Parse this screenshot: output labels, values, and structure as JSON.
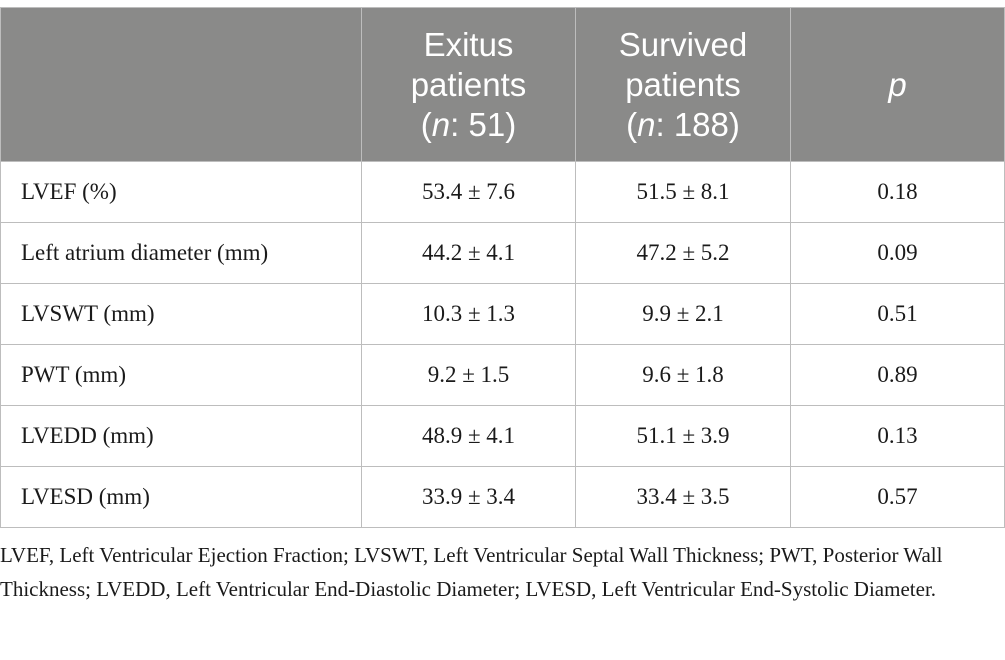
{
  "table": {
    "header": {
      "col1": {
        "line1": "Exitus",
        "line2": "patients",
        "n_prefix": "(",
        "n_italic": "n",
        "n_suffix": ": 51)"
      },
      "col2": {
        "line1": "Survived",
        "line2": "patients",
        "n_prefix": "(",
        "n_italic": "n",
        "n_suffix": ": 188)"
      },
      "col3": {
        "label": "p"
      }
    },
    "rows": [
      {
        "label": "LVEF (%)",
        "exitus": "53.4 ± 7.6",
        "survived": "51.5 ± 8.1",
        "p": "0.18"
      },
      {
        "label": "Left atrium diameter (mm)",
        "exitus": "44.2 ± 4.1",
        "survived": "47.2 ± 5.2",
        "p": "0.09"
      },
      {
        "label": "LVSWT (mm)",
        "exitus": "10.3 ± 1.3",
        "survived": "9.9 ± 2.1",
        "p": "0.51"
      },
      {
        "label": "PWT (mm)",
        "exitus": "9.2 ± 1.5",
        "survived": "9.6 ± 1.8",
        "p": "0.89"
      },
      {
        "label": "LVEDD (mm)",
        "exitus": "48.9 ± 4.1",
        "survived": "51.1 ± 3.9",
        "p": "0.13"
      },
      {
        "label": "LVESD (mm)",
        "exitus": "33.9 ± 3.4",
        "survived": "33.4 ± 3.5",
        "p": "0.57"
      }
    ]
  },
  "footnote": "LVEF, Left Ventricular Ejection Fraction; LVSWT, Left Ventricular Septal Wall Thickness; PWT, Posterior Wall Thickness; LVEDD, Left Ventricular End-Diastolic Diameter; LVESD, Left Ventricular End-Systolic Diameter.",
  "colors": {
    "header_background": "#8a8a89",
    "header_text": "#ffffff",
    "grid_lines": "#bdbdbd",
    "body_text": "#1a1a1a"
  }
}
